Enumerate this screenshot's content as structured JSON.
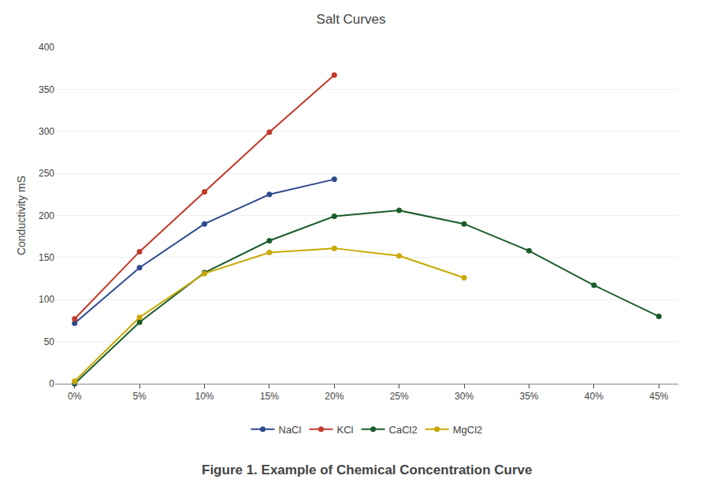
{
  "chart_data": {
    "type": "line",
    "title": "Salt Curves",
    "caption": "Figure 1. Example of Chemical Concentration Curve",
    "ylabel": "Conductivity mS",
    "xlim": [
      -1.5,
      46.5
    ],
    "xticks": [
      {
        "value": 0,
        "label": "0%"
      },
      {
        "value": 5,
        "label": "5%"
      },
      {
        "value": 10,
        "label": "10%"
      },
      {
        "value": 15,
        "label": "15%"
      },
      {
        "value": 20,
        "label": "20%"
      },
      {
        "value": 25,
        "label": "25%"
      },
      {
        "value": 30,
        "label": "30%"
      },
      {
        "value": 35,
        "label": "35%"
      },
      {
        "value": 40,
        "label": "40%"
      },
      {
        "value": 45,
        "label": "45%"
      }
    ],
    "ylim": [
      0,
      400
    ],
    "yticks": [
      0,
      50,
      100,
      150,
      200,
      250,
      300,
      350,
      400
    ],
    "grid": "y",
    "legend": "bottom",
    "series": [
      {
        "name": "NaCl",
        "color": "#2E4A8C",
        "marker": "circle",
        "x": [
          0,
          5,
          10,
          15,
          20
        ],
        "values": [
          72,
          138,
          190,
          225,
          243
        ]
      },
      {
        "name": "KCl",
        "color": "#C0392B",
        "marker": "circle",
        "x": [
          0,
          5,
          10,
          15,
          20
        ],
        "values": [
          77,
          157,
          228,
          299,
          367
        ]
      },
      {
        "name": "CaCl2",
        "color": "#1A5C2A",
        "marker": "circle",
        "x": [
          0,
          5,
          10,
          15,
          20,
          25,
          30,
          35,
          40,
          45
        ],
        "values": [
          0,
          73,
          132,
          170,
          199,
          206,
          190,
          158,
          117,
          80
        ]
      },
      {
        "name": "MgCl2",
        "color": "#C8A800",
        "marker": "circle",
        "x": [
          0,
          5,
          10,
          15,
          20,
          25,
          30
        ],
        "values": [
          3,
          79,
          131,
          156,
          161,
          152,
          126
        ]
      }
    ]
  }
}
